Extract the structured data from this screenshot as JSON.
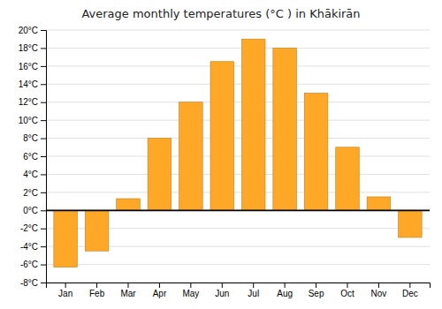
{
  "chart_data": {
    "type": "bar",
    "title": "Average monthly temperatures (°C ) in Khākirān",
    "categories": [
      "Jan",
      "Feb",
      "Mar",
      "Apr",
      "May",
      "Jun",
      "Jul",
      "Aug",
      "Sep",
      "Oct",
      "Nov",
      "Dec"
    ],
    "values": [
      -6.3,
      -4.5,
      1.3,
      8.0,
      12.0,
      16.5,
      19.0,
      18.0,
      13.0,
      7.0,
      1.5,
      -3.0
    ],
    "color": "#FFA726",
    "ylim": [
      -8,
      20
    ],
    "yticks": [
      {
        "value": -8,
        "label": "-8°C"
      },
      {
        "value": -6,
        "label": "-6°C"
      },
      {
        "value": -4,
        "label": "-4°C"
      },
      {
        "value": -2,
        "label": "-2°C"
      },
      {
        "value": 0,
        "label": "0°C"
      },
      {
        "value": 2,
        "label": "2°C"
      },
      {
        "value": 4,
        "label": "4°C"
      },
      {
        "value": 6,
        "label": "6°C"
      },
      {
        "value": 8,
        "label": "8°C"
      },
      {
        "value": 10,
        "label": "10°C"
      },
      {
        "value": 12,
        "label": "12°C"
      },
      {
        "value": 14,
        "label": "14°C"
      },
      {
        "value": 16,
        "label": "16°C"
      },
      {
        "value": 18,
        "label": "18°C"
      },
      {
        "value": 20,
        "label": "20°C"
      }
    ],
    "grid": true
  }
}
